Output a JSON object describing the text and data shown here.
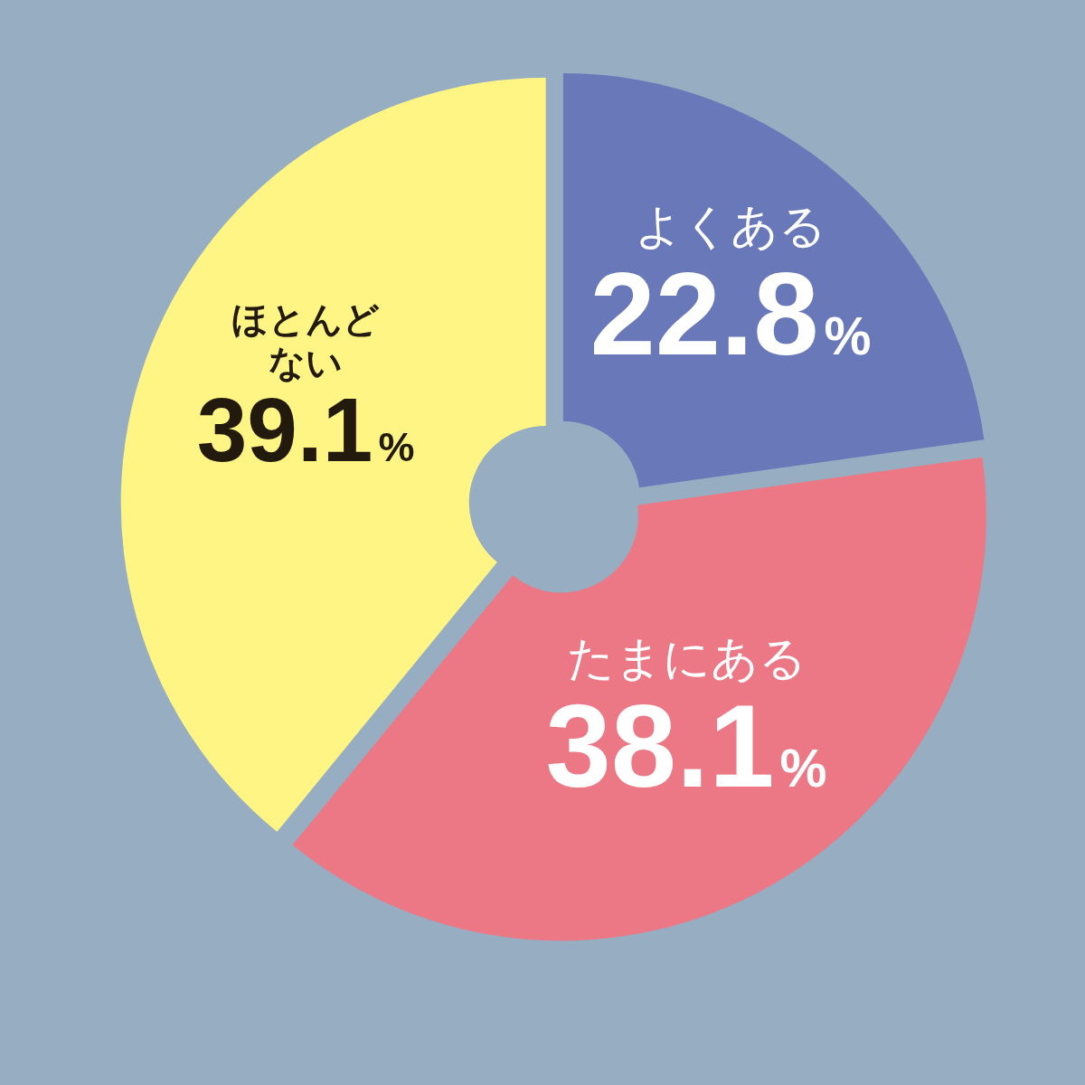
{
  "chart_data": {
    "type": "donut",
    "categories": [
      "よくある",
      "たまにある",
      "ほとんどない"
    ],
    "values": [
      22.8,
      38.1,
      39.1
    ],
    "colors": [
      "#6878b8",
      "#ec7885",
      "#fff584"
    ],
    "value_labels": [
      "22.8%",
      "38.1%",
      "39.1%"
    ]
  }
}
